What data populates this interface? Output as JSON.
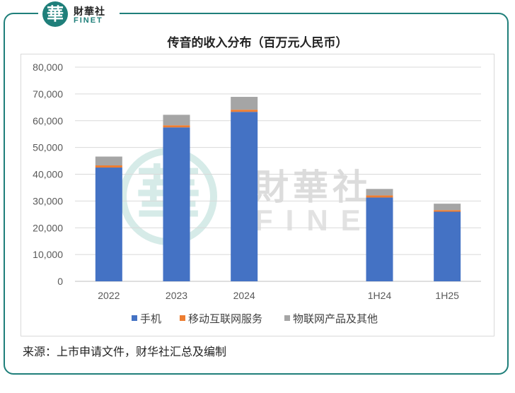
{
  "logo": {
    "seal_char": "華",
    "name_cn": "財華社",
    "name_en": "FINET"
  },
  "watermark": {
    "seal_char": "華",
    "name_cn": "財華社",
    "name_en": "FINET"
  },
  "source_note": "来源：上市申请文件，财华社汇总及编制",
  "colors": {
    "frame": "#1f7f7a",
    "phones": "#4472c4",
    "mobile_internet": "#ed7d31",
    "iot": "#a5a5a5"
  },
  "chart_data": {
    "type": "bar",
    "stacked": true,
    "title": "传音的收入分布（百万元人民币）",
    "categories": [
      "2022",
      "2023",
      "2024",
      "1H24",
      "1H25"
    ],
    "gap_after_index": 2,
    "ylim": [
      0,
      80000
    ],
    "yticks": [
      0,
      10000,
      20000,
      30000,
      40000,
      50000,
      60000,
      70000,
      80000
    ],
    "ytick_labels": [
      "0",
      "10,000",
      "20,000",
      "30,000",
      "40,000",
      "50,000",
      "60,000",
      "70,000",
      "80,000"
    ],
    "grid": true,
    "legend_position": "bottom",
    "series": [
      {
        "name": "手机",
        "color": "#4472c4",
        "values": [
          42500,
          57500,
          63300,
          31300,
          26000
        ]
      },
      {
        "name": "移动互联网服务",
        "color": "#ed7d31",
        "values": [
          800,
          800,
          800,
          800,
          600
        ]
      },
      {
        "name": "物联网产品及其他",
        "color": "#a5a5a5",
        "values": [
          3300,
          3900,
          4800,
          2400,
          2400
        ]
      }
    ]
  }
}
